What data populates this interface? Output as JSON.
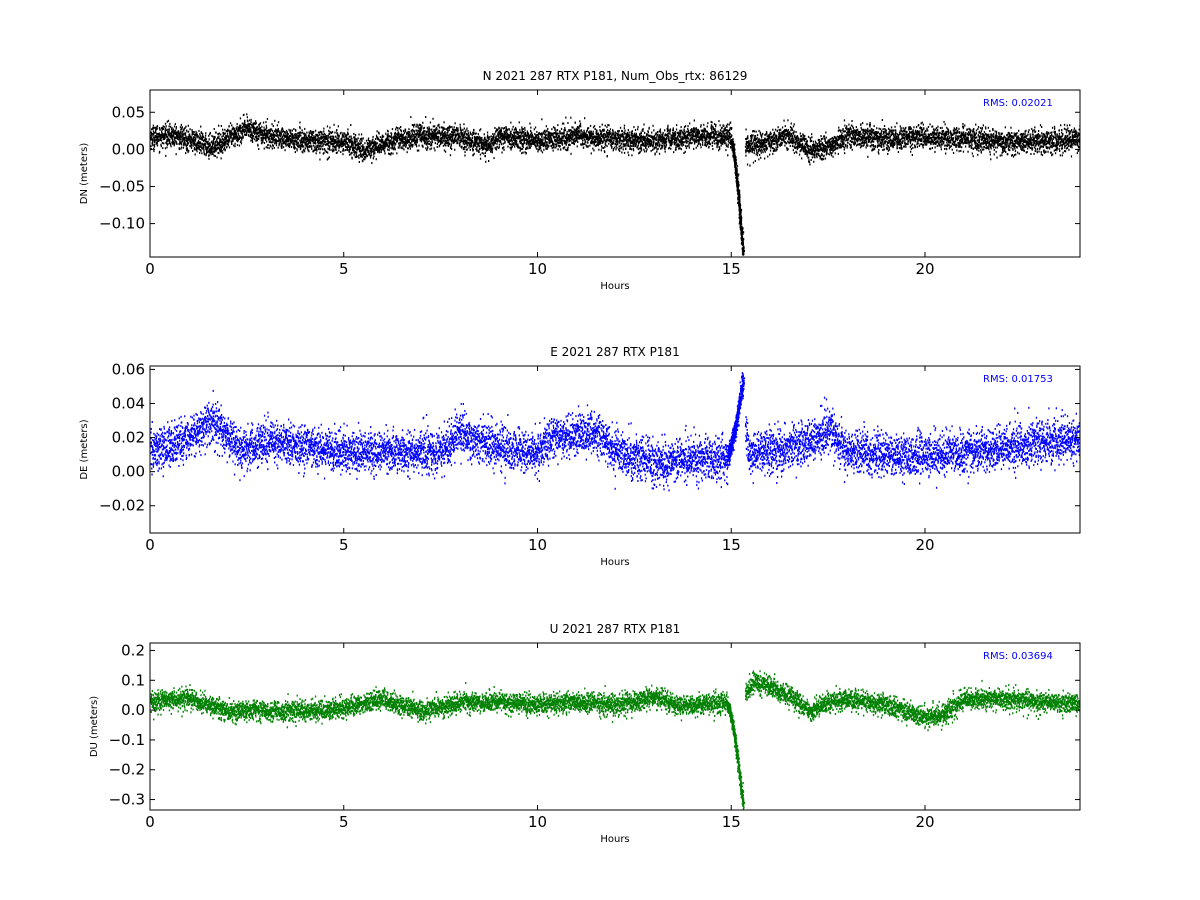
{
  "chart_data": [
    {
      "type": "scatter",
      "title": "N 2021 287 RTX  P181, Num_Obs_rtx: 86129",
      "xlabel": "Hours",
      "ylabel": "DN (meters)",
      "xlim": [
        0,
        24
      ],
      "ylim": [
        -0.145,
        0.08
      ],
      "xticks": [
        0,
        5,
        10,
        15,
        20
      ],
      "xtick_labels": [
        "0",
        "5",
        "10",
        "15",
        "20"
      ],
      "yticks": [
        0.05,
        0.0,
        -0.05,
        -0.1
      ],
      "ytick_labels": [
        "0.05",
        "0.00",
        "−0.05",
        "−0.10"
      ],
      "color": "#000000",
      "rms_label": "RMS:  0.02021",
      "rms_color": "#0000ff",
      "trend": [
        [
          0,
          0.018
        ],
        [
          0.5,
          0.02
        ],
        [
          1,
          0.015
        ],
        [
          1.5,
          0.005
        ],
        [
          2,
          0.015
        ],
        [
          2.5,
          0.03
        ],
        [
          3,
          0.02
        ],
        [
          4,
          0.012
        ],
        [
          5,
          0.012
        ],
        [
          5.5,
          0.0
        ],
        [
          6,
          0.01
        ],
        [
          7,
          0.02
        ],
        [
          8,
          0.018
        ],
        [
          8.7,
          0.005
        ],
        [
          9,
          0.02
        ],
        [
          10,
          0.012
        ],
        [
          11,
          0.02
        ],
        [
          12,
          0.015
        ],
        [
          13,
          0.012
        ],
        [
          14,
          0.018
        ],
        [
          14.9,
          0.02
        ],
        [
          15.3,
          0.005
        ],
        [
          16,
          0.012
        ],
        [
          16.5,
          0.02
        ],
        [
          17,
          0.0
        ],
        [
          17.5,
          0.005
        ],
        [
          18,
          0.02
        ],
        [
          19,
          0.015
        ],
        [
          20,
          0.018
        ],
        [
          21,
          0.015
        ],
        [
          22,
          0.012
        ],
        [
          23,
          0.012
        ],
        [
          24,
          0.015
        ]
      ],
      "event": {
        "x_start": 15.0,
        "x_end": 15.3,
        "y_start": 0.01,
        "y_end": -0.14
      },
      "noise": 0.014
    },
    {
      "type": "scatter",
      "title": "E 2021 287 RTX  P181",
      "xlabel": "Hours",
      "ylabel": "DE (meters)",
      "xlim": [
        0,
        24
      ],
      "ylim": [
        -0.036,
        0.062
      ],
      "xticks": [
        0,
        5,
        10,
        15,
        20
      ],
      "xtick_labels": [
        "0",
        "5",
        "10",
        "15",
        "20"
      ],
      "yticks": [
        0.06,
        0.04,
        0.02,
        0.0,
        -0.02
      ],
      "ytick_labels": [
        "0.06",
        "0.04",
        "0.02",
        "0.00",
        "−0.02"
      ],
      "color": "#0000ff",
      "rms_label": "RMS:  0.01753",
      "rms_color": "#0000ff",
      "trend": [
        [
          0,
          0.012
        ],
        [
          1,
          0.02
        ],
        [
          1.5,
          0.03
        ],
        [
          2,
          0.022
        ],
        [
          2.3,
          0.012
        ],
        [
          3,
          0.018
        ],
        [
          4,
          0.015
        ],
        [
          5,
          0.012
        ],
        [
          6,
          0.012
        ],
        [
          7,
          0.012
        ],
        [
          7.5,
          0.012
        ],
        [
          8,
          0.025
        ],
        [
          8.3,
          0.02
        ],
        [
          9,
          0.015
        ],
        [
          10,
          0.012
        ],
        [
          10.3,
          0.02
        ],
        [
          11,
          0.022
        ],
        [
          11.5,
          0.024
        ],
        [
          12,
          0.012
        ],
        [
          13,
          0.006
        ],
        [
          14,
          0.008
        ],
        [
          15,
          0.008
        ],
        [
          15.3,
          0.03
        ],
        [
          15.5,
          0.01
        ],
        [
          16,
          0.012
        ],
        [
          17,
          0.018
        ],
        [
          17.5,
          0.025
        ],
        [
          18,
          0.012
        ],
        [
          19,
          0.01
        ],
        [
          20,
          0.01
        ],
        [
          21,
          0.012
        ],
        [
          22,
          0.015
        ],
        [
          23,
          0.018
        ],
        [
          24,
          0.02
        ]
      ],
      "event": {
        "x_start": 14.9,
        "x_end": 15.3,
        "y_start": 0.01,
        "y_end": 0.055
      },
      "noise": 0.011
    },
    {
      "type": "scatter",
      "title": "U 2021 287 RTX  P181",
      "xlabel": "Hours",
      "ylabel": "DU (meters)",
      "xlim": [
        0,
        24
      ],
      "ylim": [
        -0.335,
        0.225
      ],
      "xticks": [
        0,
        5,
        10,
        15,
        20
      ],
      "xtick_labels": [
        "0",
        "5",
        "10",
        "15",
        "20"
      ],
      "yticks": [
        0.2,
        0.1,
        0.0,
        -0.1,
        -0.2,
        -0.3
      ],
      "ytick_labels": [
        "0.2",
        "0.1",
        "0.0",
        "−0.1",
        "−0.2",
        "−0.3"
      ],
      "color": "#008000",
      "rms_label": "RMS:  0.03694",
      "rms_color": "#0000ff",
      "trend": [
        [
          0,
          0.03
        ],
        [
          1,
          0.04
        ],
        [
          2,
          0.0
        ],
        [
          3,
          0.0
        ],
        [
          4,
          0.0
        ],
        [
          5,
          0.01
        ],
        [
          6,
          0.04
        ],
        [
          6.5,
          0.02
        ],
        [
          7,
          0.0
        ],
        [
          8,
          0.03
        ],
        [
          9,
          0.03
        ],
        [
          10,
          0.02
        ],
        [
          11,
          0.03
        ],
        [
          12,
          0.02
        ],
        [
          12.5,
          0.03
        ],
        [
          13,
          0.05
        ],
        [
          13.5,
          0.02
        ],
        [
          14,
          0.02
        ],
        [
          15,
          0.03
        ],
        [
          15.3,
          0.05
        ],
        [
          15.6,
          0.1
        ],
        [
          16,
          0.08
        ],
        [
          16.5,
          0.05
        ],
        [
          17,
          0.0
        ],
        [
          17.5,
          0.03
        ],
        [
          18,
          0.04
        ],
        [
          19,
          0.02
        ],
        [
          20,
          -0.02
        ],
        [
          20.5,
          -0.01
        ],
        [
          21,
          0.04
        ],
        [
          22,
          0.04
        ],
        [
          23,
          0.03
        ],
        [
          24,
          0.02
        ]
      ],
      "event": {
        "x_start": 14.9,
        "x_end": 15.3,
        "y_start": 0.02,
        "y_end": -0.32
      },
      "noise": 0.03
    }
  ]
}
